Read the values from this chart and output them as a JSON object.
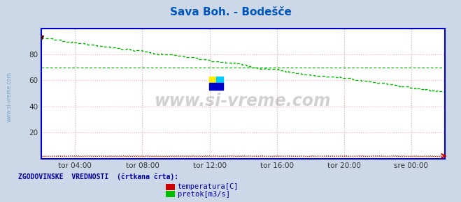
{
  "title": "Sava Boh. - Bodešče",
  "title_color": "#0055bb",
  "bg_color": "#ccd8e8",
  "plot_bg_color": "#ffffff",
  "watermark": "www.si-vreme.com",
  "ylim": [
    0,
    100
  ],
  "ytick_vals": [
    20,
    40,
    60,
    80
  ],
  "xlim_points": 288,
  "xtick_positions": [
    24,
    72,
    120,
    168,
    216,
    264
  ],
  "xtick_labels": [
    "tor 04:00",
    "tor 08:00",
    "tor 12:00",
    "tor 16:00",
    "tor 20:00",
    "sre 00:00"
  ],
  "grid_color_h": "#ffaaaa",
  "grid_color_v": "#ddaaaa",
  "axis_color": "#0000cc",
  "tick_color": "#333333",
  "sidebar_text": "www.si-vreme.com",
  "sidebar_color": "#6699bb",
  "legend_label": "ZGODOVINSKE  VREDNOSTI  (črtkana črta):",
  "legend_color": "#0000aa",
  "legend_items": [
    {
      "label": "temperatura[C]",
      "color": "#cc0000"
    },
    {
      "label": "pretok[m3/s]",
      "color": "#00bb00"
    }
  ],
  "flow_start": 93,
  "flow_end": 52,
  "flow_hist_value": 70,
  "temp_value": 2.0,
  "temp_hist_value": 2.0,
  "flow_color": "#00bb00",
  "temp_color": "#cc0000",
  "hist_color_flow": "#00bb00",
  "hist_color_temp": "#cc0000"
}
